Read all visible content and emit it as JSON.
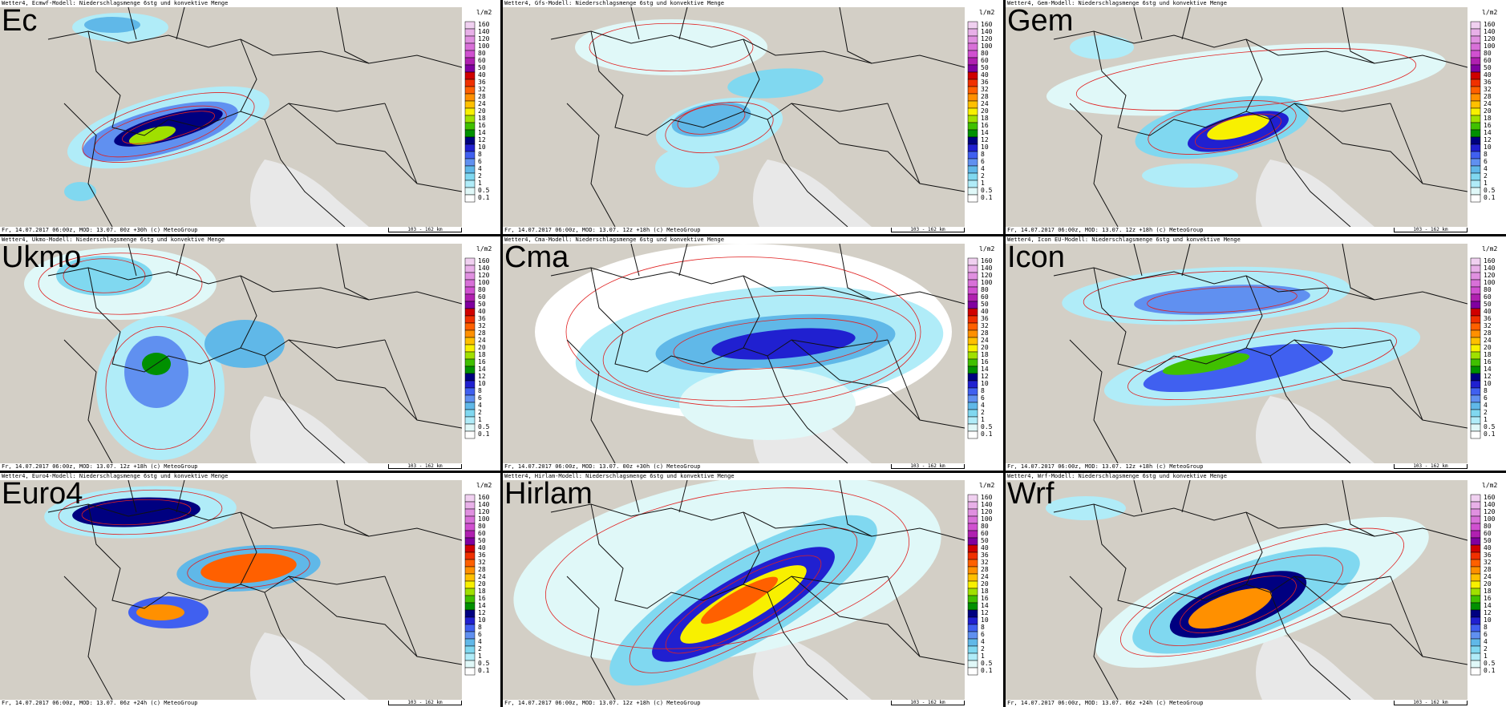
{
  "legend": {
    "unit": "l/m2",
    "labels": [
      "160",
      "140",
      "120",
      "100",
      "80",
      "60",
      "50",
      "40",
      "36",
      "32",
      "28",
      "24",
      "20",
      "18",
      "16",
      "14",
      "12",
      "10",
      "8",
      "6",
      "4",
      "2",
      "1",
      "0.5",
      "0.1"
    ],
    "colors": [
      "#f0d0f0",
      "#e8b0e8",
      "#e090e0",
      "#d870d8",
      "#d050d0",
      "#b020b0",
      "#8000a0",
      "#d00000",
      "#f03000",
      "#ff6000",
      "#ff9000",
      "#ffc000",
      "#f8f000",
      "#a0e000",
      "#40c000",
      "#009000",
      "#000080",
      "#2020d0",
      "#4060f0",
      "#6090f0",
      "#60b8e8",
      "#80d8f0",
      "#b0ecf8",
      "#e0f8f8",
      "#ffffff"
    ]
  },
  "panels": [
    {
      "name": "Ec",
      "header": "Wetter4, Ecmwf-Modell: Niederschlagsmenge 6stg und konvektive Menge",
      "footer": "Fr, 14.07.2017 06:00z, MOD: 13.07. 00z +30h (c) MeteoGroup",
      "scale": "103 - 162 km"
    },
    {
      "name": "",
      "header": "Wetter4, Gfs-Modell: Niederschlagsmenge 6stg und konvektive Menge",
      "footer": "Fr, 14.07.2017 06:00z, MOD: 13.07. 12z +18h (c) MeteoGroup",
      "scale": "103 - 162 km"
    },
    {
      "name": "Gem",
      "header": "Wetter4, Gem-Modell: Niederschlagsmenge 6stg und konvektive Menge",
      "footer": "Fr, 14.07.2017 06:00z, MOD: 13.07. 12z +18h (c) MeteoGroup",
      "scale": "103 - 162 km"
    },
    {
      "name": "Ukmo",
      "header": "Wetter4, Ukmo-Modell: Niederschlagsmenge 6stg und konvektive Menge",
      "footer": "Fr, 14.07.2017 06:00z, MOD: 13.07. 12z +18h (c) MeteoGroup",
      "scale": "103 - 162 km"
    },
    {
      "name": "Cma",
      "header": "Wetter4, Cma-Modell: Niederschlagsmenge 6stg und konvektive Menge",
      "footer": "Fr, 14.07.2017 06:00z, MOD: 13.07. 00z +30h (c) MeteoGroup",
      "scale": "103 - 162 km"
    },
    {
      "name": "Icon",
      "header": "Wetter4, Icon EU-Modell: Niederschlagsmenge 6stg und konvektive Menge",
      "footer": "Fr, 14.07.2017 06:00z, MOD: 13.07. 12z +18h (c) MeteoGroup",
      "scale": "103 - 162 km"
    },
    {
      "name": "Euro4",
      "header": "Wetter4, Euro4-Modell: Niederschlagsmenge 6stg und konvektive Menge",
      "footer": "Fr, 14.07.2017 06:00z, MOD: 13.07. 06z +24h (c) MeteoGroup",
      "scale": "103 - 162 km"
    },
    {
      "name": "Hirlam",
      "header": "Wetter4, Hirlam-Modell: Niederschlagsmenge 6stg und konvektive Menge",
      "footer": "Fr, 14.07.2017 06:00z, MOD: 13.07. 12z +18h (c) MeteoGroup",
      "scale": "103 - 162 km"
    },
    {
      "name": "Wrf",
      "header": "Wetter4, Wrf-Modell: Niederschlagsmenge 6stg und konvektive Menge",
      "footer": "Fr, 14.07.2017 06:00z, MOD: 13.07. 06z +24h (c) MeteoGroup",
      "scale": "103 - 162 km"
    }
  ]
}
